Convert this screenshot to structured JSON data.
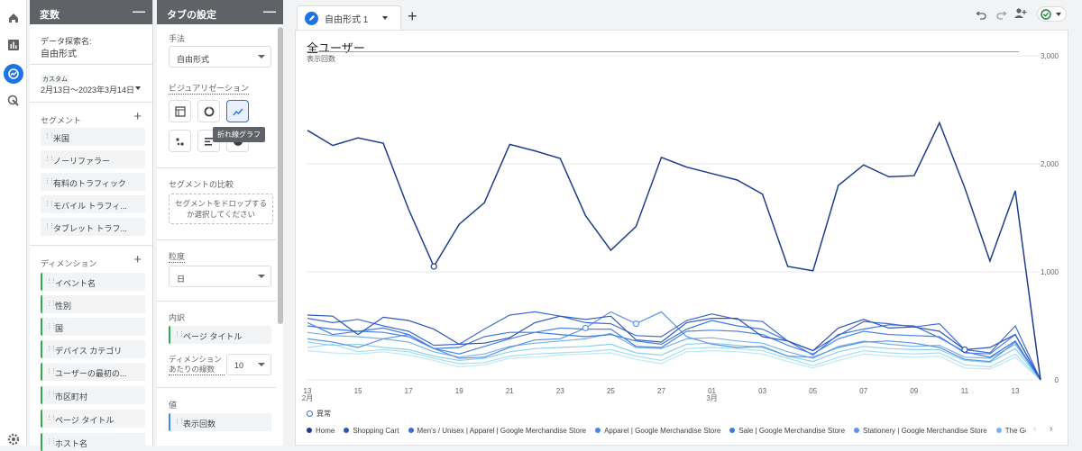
{
  "vars_panel": {
    "title": "変数",
    "minimize": "—",
    "exploration_name_label": "データ探索名:",
    "exploration_name": "自由形式",
    "date_custom_label": "カスタム",
    "date_range": "2月13日～2023年3月14日",
    "segments_label": "セグメント",
    "segments": [
      "米国",
      "ノーリファラー",
      "有料のトラフィック",
      "モバイル トラフィ...",
      "タブレット トラフ..."
    ],
    "dimensions_label": "ディメンション",
    "dimensions": [
      "イベント名",
      "性別",
      "国",
      "デバイス カテゴリ",
      "ユーザーの最初の...",
      "市区町村",
      "ページ タイトル",
      "ホスト名"
    ]
  },
  "tab_settings": {
    "title": "タブの設定",
    "minimize": "—",
    "technique_label": "手法",
    "technique_value": "自由形式",
    "visualization_label": "ビジュアリゼーション",
    "tooltip": "折れ線グラフ",
    "segment_compare_label": "セグメントの比較",
    "segment_drop_text": "セグメントをドロップするか選択してください",
    "granularity_label": "粒度",
    "granularity_value": "日",
    "breakdown_label": "内訳",
    "breakdown_chip": "ページ タイトル",
    "rows_per_dim_label": "ディメンション あたりの線数",
    "rows_per_dim_value": "10",
    "values_label": "値",
    "values_chip": "表示回数"
  },
  "main": {
    "tab_name": "自由形式 1",
    "chart_title": "全ユーザー"
  },
  "colors": {
    "primary": "#1a73e8",
    "series": [
      "#1d3d8f",
      "#2e55b8",
      "#3f6bd6",
      "#4d84e8",
      "#3a7be3",
      "#5b95ea",
      "#76b2ee",
      "#8fd0f0",
      "#a7dff2",
      "#bfe9f5"
    ]
  },
  "chart_data": {
    "type": "line",
    "ylabel": "表示回数",
    "ylim": [
      0,
      3000
    ],
    "yticks": [
      "0",
      "1,000",
      "2,000",
      "3,000"
    ],
    "x_tick_labels": [
      "13",
      "15",
      "17",
      "19",
      "21",
      "23",
      "25",
      "27",
      "01",
      "03",
      "05",
      "07",
      "09",
      "11",
      "13"
    ],
    "x_month_labels": [
      {
        "at": "13",
        "label": "2月"
      },
      {
        "at": "01",
        "label": "3月"
      }
    ],
    "anomaly_label": "異常",
    "series": [
      {
        "name": "Home",
        "values": [
          2310,
          2170,
          2240,
          2190,
          1580,
          1050,
          1440,
          1640,
          2180,
          2120,
          2050,
          1520,
          1200,
          1420,
          2060,
          1970,
          1910,
          1850,
          1720,
          1050,
          1010,
          1800,
          1990,
          1880,
          1890,
          2380,
          1780,
          1100,
          1750,
          0
        ]
      },
      {
        "name": "Shopping Cart",
        "values": [
          600,
          590,
          420,
          580,
          550,
          470,
          330,
          340,
          390,
          530,
          590,
          560,
          590,
          370,
          350,
          530,
          570,
          570,
          400,
          360,
          270,
          480,
          560,
          480,
          490,
          450,
          280,
          300,
          420,
          0
        ]
      },
      {
        "name": "Men's / Unisex | Apparel | Google Merchandise Store",
        "values": [
          570,
          530,
          560,
          500,
          450,
          320,
          330,
          470,
          600,
          630,
          590,
          530,
          520,
          410,
          400,
          550,
          610,
          560,
          540,
          360,
          270,
          410,
          540,
          520,
          490,
          520,
          280,
          250,
          500,
          0
        ]
      },
      {
        "name": "Apparel | Google Merchandise Store",
        "values": [
          530,
          420,
          450,
          440,
          400,
          290,
          240,
          310,
          380,
          440,
          480,
          470,
          470,
          310,
          300,
          450,
          460,
          450,
          420,
          320,
          240,
          380,
          450,
          420,
          410,
          400,
          250,
          240,
          420,
          0
        ]
      },
      {
        "name": "Sale | Google Merchandise Store",
        "values": [
          500,
          470,
          450,
          480,
          420,
          290,
          300,
          400,
          440,
          440,
          420,
          400,
          420,
          360,
          330,
          470,
          550,
          500,
          470,
          360,
          230,
          420,
          470,
          510,
          500,
          390,
          260,
          210,
          360,
          0
        ]
      },
      {
        "name": "Stationery | Google Merchandise Store",
        "values": [
          380,
          350,
          300,
          380,
          420,
          290,
          200,
          210,
          300,
          370,
          380,
          480,
          630,
          520,
          630,
          400,
          330,
          300,
          310,
          220,
          210,
          300,
          350,
          360,
          340,
          300,
          190,
          170,
          350,
          0
        ]
      },
      {
        "name": "The Google Merchandise Store",
        "values": [
          440,
          410,
          400,
          380,
          350,
          260,
          210,
          240,
          310,
          340,
          360,
          380,
          430,
          300,
          290,
          380,
          390,
          360,
          340,
          260,
          200,
          310,
          360,
          330,
          310,
          320,
          210,
          200,
          330,
          0
        ]
      },
      {
        "name": "",
        "values": [
          350,
          320,
          330,
          300,
          280,
          220,
          180,
          200,
          260,
          290,
          300,
          310,
          330,
          250,
          230,
          330,
          340,
          320,
          300,
          220,
          170,
          260,
          310,
          290,
          280,
          280,
          180,
          160,
          290,
          0
        ]
      },
      {
        "name": "",
        "values": [
          300,
          330,
          260,
          280,
          260,
          200,
          150,
          160,
          220,
          240,
          250,
          260,
          280,
          220,
          180,
          290,
          300,
          290,
          270,
          200,
          130,
          210,
          270,
          250,
          240,
          250,
          140,
          120,
          240,
          0
        ]
      },
      {
        "name": "",
        "values": [
          270,
          250,
          240,
          260,
          230,
          180,
          120,
          140,
          200,
          210,
          230,
          240,
          250,
          190,
          150,
          260,
          270,
          260,
          240,
          170,
          110,
          180,
          240,
          220,
          210,
          220,
          110,
          100,
          210,
          0
        ]
      }
    ]
  }
}
